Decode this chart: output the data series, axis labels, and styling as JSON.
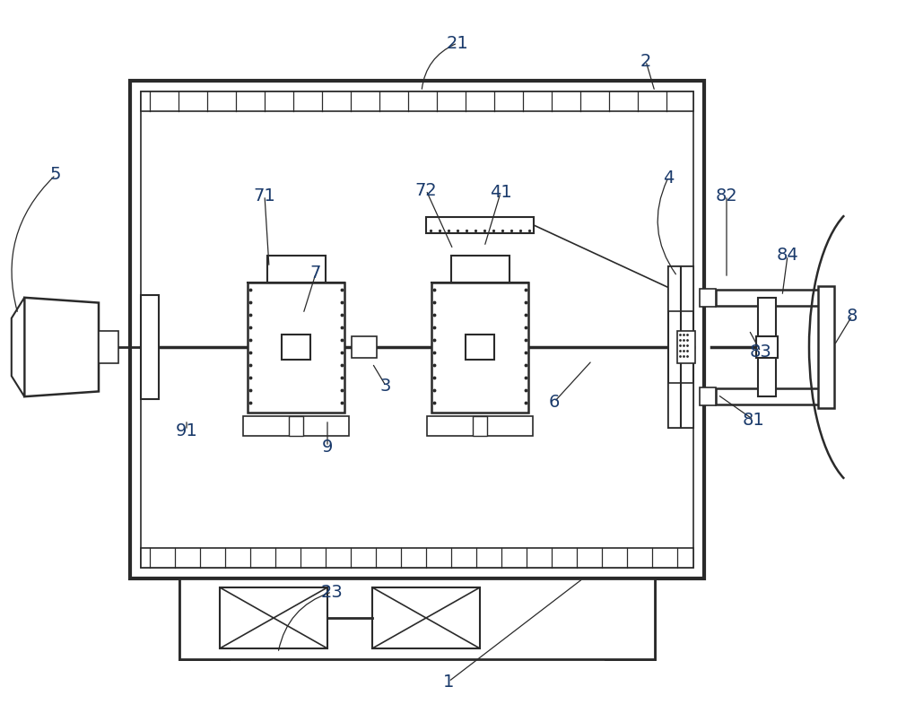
{
  "bg_color": "#ffffff",
  "lc": "#2a2a2a",
  "label_color": "#1a3a6b",
  "fig_width": 10.0,
  "fig_height": 7.95,
  "dpi": 100
}
